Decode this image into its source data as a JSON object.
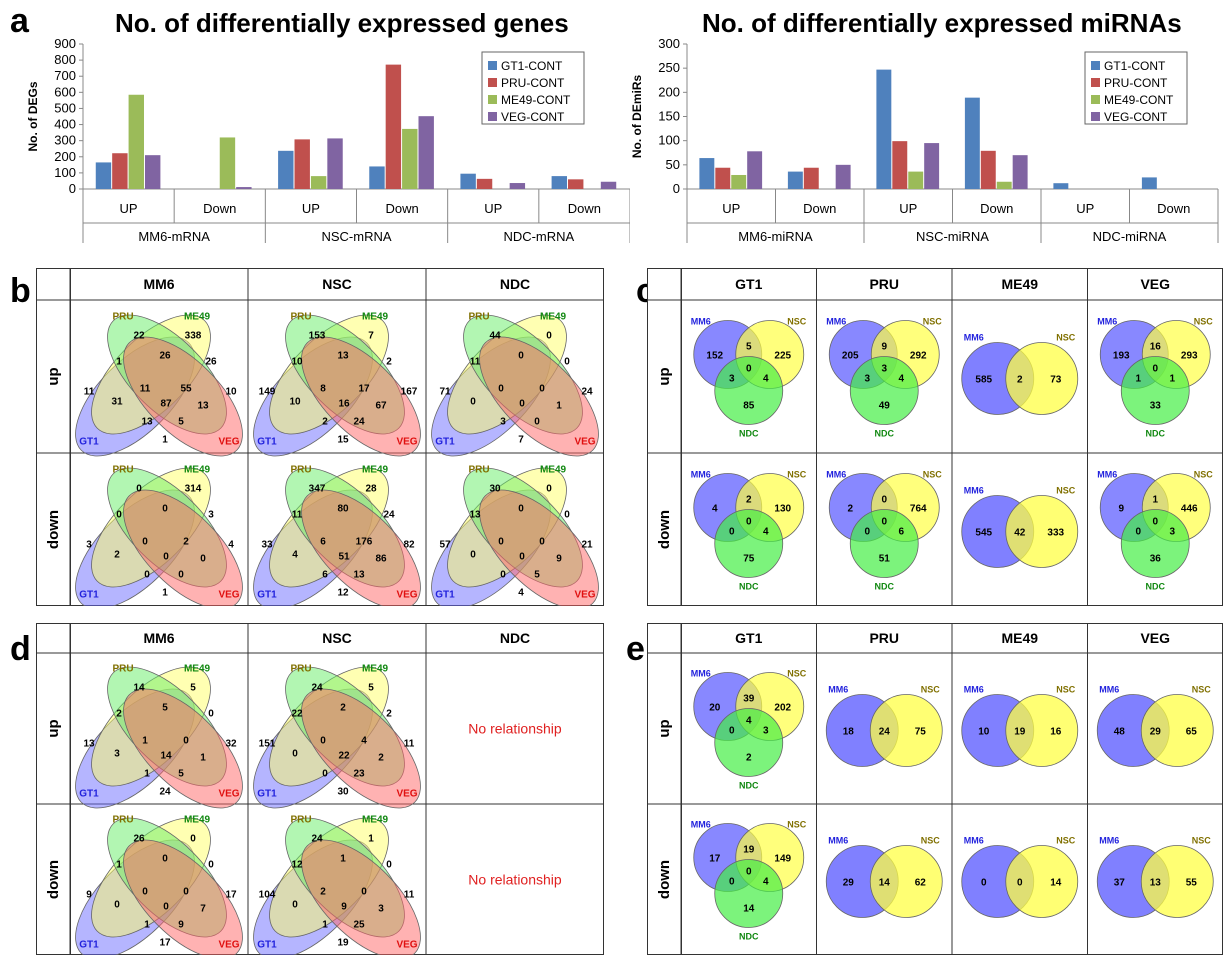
{
  "panels": {
    "a": "a",
    "b": "b",
    "c": "c",
    "d": "d",
    "e": "e"
  },
  "colors": {
    "GT1-CONT": "#4F81BD",
    "PRU-CONT": "#C0504D",
    "ME49-CONT": "#9BBB59",
    "VEG-CONT": "#8064A2",
    "venn4": {
      "GT1": "#6b6bff",
      "PRU": "#ffff66",
      "ME49": "#66ee66",
      "VEG": "#ff6666"
    },
    "venn_labels": {
      "GT1": "#2222dd",
      "PRU": "#807000",
      "ME49": "#118811",
      "VEG": "#e01010",
      "MM6": "#2222dd",
      "NSC": "#807000",
      "NDC": "#118811"
    },
    "no_relationship": "#e02020"
  },
  "chart_data": [
    {
      "type": "bar",
      "title": "No. of differentially expressed genes",
      "ylabel": "No. of DEGs",
      "ylim": [
        0,
        900
      ],
      "yticks": [
        0,
        100,
        200,
        300,
        400,
        500,
        600,
        700,
        800,
        900
      ],
      "categories": [
        "UP",
        "Down",
        "UP",
        "Down",
        "UP",
        "Down"
      ],
      "groups": [
        "MM6-mRNA",
        "NSC-mRNA",
        "NDC-mRNA"
      ],
      "legend_position": "top-right",
      "series": [
        {
          "name": "GT1-CONT",
          "values": [
            165,
            0,
            237,
            140,
            95,
            80
          ]
        },
        {
          "name": "PRU-CONT",
          "values": [
            222,
            0,
            308,
            772,
            63,
            60
          ]
        },
        {
          "name": "ME49-CONT",
          "values": [
            585,
            320,
            80,
            373,
            0,
            0
          ]
        },
        {
          "name": "VEG-CONT",
          "values": [
            210,
            12,
            314,
            452,
            37,
            45
          ]
        }
      ]
    },
    {
      "type": "bar",
      "title": "No. of differentially expressed miRNAs",
      "ylabel": "No. of DEmiRs",
      "ylim": [
        0,
        300
      ],
      "yticks": [
        0,
        50,
        100,
        150,
        200,
        250,
        300
      ],
      "categories": [
        "UP",
        "Down",
        "UP",
        "Down",
        "UP",
        "Down"
      ],
      "groups": [
        "MM6-miRNA",
        "NSC-miRNA",
        "NDC-miRNA"
      ],
      "legend_position": "top-right",
      "series": [
        {
          "name": "GT1-CONT",
          "values": [
            64,
            36,
            247,
            189,
            12,
            24
          ]
        },
        {
          "name": "PRU-CONT",
          "values": [
            44,
            44,
            99,
            79,
            0,
            0
          ]
        },
        {
          "name": "ME49-CONT",
          "values": [
            29,
            0,
            36,
            15,
            0,
            0
          ]
        },
        {
          "name": "VEG-CONT",
          "values": [
            78,
            50,
            95,
            70,
            0,
            0
          ]
        }
      ]
    }
  ],
  "venn": {
    "row_labels": [
      "up",
      "down"
    ],
    "set_labels4": [
      "PRU",
      "ME49",
      "GT1",
      "VEG"
    ],
    "b": {
      "columns": [
        "MM6",
        "NSC",
        "NDC"
      ],
      "cells": [
        [
          {
            "v": [
              "11",
              "10",
              "22",
              "338",
              "1",
              "26",
              "26",
              "31",
              "11",
              "55",
              "13",
              "87",
              "13",
              "5",
              "1"
            ]
          },
          {
            "v": [
              "149",
              "167",
              "153",
              "7",
              "10",
              "13",
              "2",
              "10",
              "8",
              "17",
              "67",
              "16",
              "2",
              "24",
              "15"
            ]
          },
          {
            "v": [
              "71",
              "24",
              "44",
              "0",
              "11",
              "0",
              "0",
              "0",
              "0",
              "0",
              "1",
              "0",
              "3",
              "0",
              "7"
            ]
          }
        ],
        [
          {
            "v": [
              "3",
              "4",
              "0",
              "314",
              "0",
              "0",
              "3",
              "2",
              "0",
              "2",
              "0",
              "0",
              "0",
              "0",
              "1"
            ]
          },
          {
            "v": [
              "33",
              "82",
              "347",
              "28",
              "11",
              "80",
              "24",
              "4",
              "6",
              "176",
              "86",
              "51",
              "6",
              "13",
              "12"
            ]
          },
          {
            "v": [
              "57",
              "21",
              "30",
              "0",
              "13",
              "0",
              "0",
              "0",
              "0",
              "0",
              "9",
              "0",
              "0",
              "5",
              "4"
            ]
          }
        ]
      ]
    },
    "c": {
      "columns": [
        "GT1",
        "PRU",
        "ME49",
        "VEG"
      ],
      "cells": [
        [
          {
            "kind": 3,
            "v": [
              "152",
              "225",
              "85",
              "5",
              "3",
              "4",
              "0"
            ]
          },
          {
            "kind": 3,
            "v": [
              "205",
              "292",
              "49",
              "9",
              "3",
              "4",
              "3"
            ]
          },
          {
            "kind": 2,
            "v": [
              "585",
              "73",
              "2"
            ]
          },
          {
            "kind": 3,
            "v": [
              "193",
              "293",
              "33",
              "16",
              "1",
              "1",
              "0"
            ]
          }
        ],
        [
          {
            "kind": 3,
            "v": [
              "4",
              "130",
              "75",
              "2",
              "0",
              "4",
              "0"
            ]
          },
          {
            "kind": 3,
            "v": [
              "2",
              "764",
              "51",
              "0",
              "0",
              "6",
              "0"
            ]
          },
          {
            "kind": 2,
            "v": [
              "545",
              "333",
              "42"
            ]
          },
          {
            "kind": 3,
            "v": [
              "9",
              "446",
              "36",
              "1",
              "0",
              "3",
              "0"
            ]
          }
        ]
      ]
    },
    "d": {
      "columns": [
        "MM6",
        "NSC",
        "NDC"
      ],
      "no_relationship": "No relationship",
      "cells": [
        [
          {
            "v": [
              "13",
              "32",
              "14",
              "5",
              "2",
              "5",
              "0",
              "3",
              "1",
              "0",
              "1",
              "14",
              "1",
              "5",
              "24"
            ]
          },
          {
            "v": [
              "151",
              "11",
              "24",
              "5",
              "22",
              "2",
              "2",
              "0",
              "0",
              "4",
              "2",
              "22",
              "0",
              "23",
              "30"
            ]
          },
          {
            "none": true
          }
        ],
        [
          {
            "v": [
              "9",
              "17",
              "26",
              "0",
              "1",
              "0",
              "0",
              "0",
              "0",
              "0",
              "7",
              "0",
              "1",
              "9",
              "17"
            ]
          },
          {
            "v": [
              "104",
              "11",
              "24",
              "1",
              "12",
              "1",
              "0",
              "0",
              "2",
              "0",
              "3",
              "9",
              "1",
              "25",
              "19"
            ]
          },
          {
            "none": true
          }
        ]
      ]
    },
    "e": {
      "columns": [
        "GT1",
        "PRU",
        "ME49",
        "VEG"
      ],
      "cells": [
        [
          {
            "kind": 3,
            "v": [
              "20",
              "202",
              "2",
              "39",
              "0",
              "3",
              "4"
            ]
          },
          {
            "kind": 2,
            "v": [
              "18",
              "75",
              "24"
            ]
          },
          {
            "kind": 2,
            "v": [
              "10",
              "16",
              "19"
            ]
          },
          {
            "kind": 2,
            "v": [
              "48",
              "65",
              "29"
            ]
          }
        ],
        [
          {
            "kind": 3,
            "v": [
              "17",
              "149",
              "14",
              "19",
              "0",
              "4",
              "0"
            ]
          },
          {
            "kind": 2,
            "v": [
              "29",
              "62",
              "14"
            ]
          },
          {
            "kind": 2,
            "v": [
              "0",
              "14",
              "0"
            ]
          },
          {
            "kind": 2,
            "v": [
              "37",
              "55",
              "13"
            ]
          }
        ]
      ]
    },
    "set_labels3": [
      "MM6",
      "NSC",
      "NDC"
    ],
    "set_labels2": [
      "MM6",
      "NSC"
    ]
  }
}
